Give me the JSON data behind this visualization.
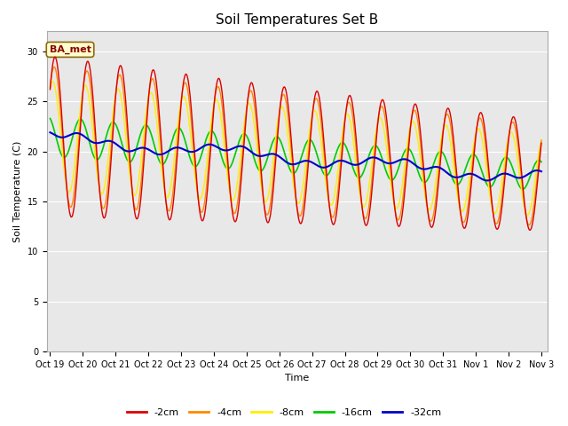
{
  "title": "Soil Temperatures Set B",
  "xlabel": "Time",
  "ylabel": "Soil Temperature (C)",
  "legend_label": "BA_met",
  "series_labels": [
    "-2cm",
    "-4cm",
    "-8cm",
    "-16cm",
    "-32cm"
  ],
  "series_colors": [
    "#dd0000",
    "#ff8800",
    "#ffee00",
    "#00cc00",
    "#0000cc"
  ],
  "series_linewidths": [
    1.0,
    1.0,
    1.0,
    1.2,
    1.5
  ],
  "ylim": [
    0,
    32
  ],
  "yticks": [
    0,
    5,
    10,
    15,
    20,
    25,
    30
  ],
  "plot_facecolor": "#e8e8e8",
  "fig_facecolor": "#ffffff",
  "title_fontsize": 11,
  "label_fontsize": 8,
  "tick_fontsize": 7,
  "xtick_labels": [
    "Oct 19",
    "Oct 20",
    "Oct 21",
    "Oct 22",
    "Oct 23",
    "Oct 24",
    "Oct 25",
    "Oct 26",
    "Oct 27",
    "Oct 28",
    "Oct 29",
    "Oct 30",
    "Oct 31",
    "Nov 1",
    "Nov 2",
    "Nov 3"
  ],
  "xtick_positions": [
    0,
    1,
    2,
    3,
    4,
    5,
    6,
    7,
    8,
    9,
    10,
    11,
    12,
    13,
    14,
    15
  ]
}
